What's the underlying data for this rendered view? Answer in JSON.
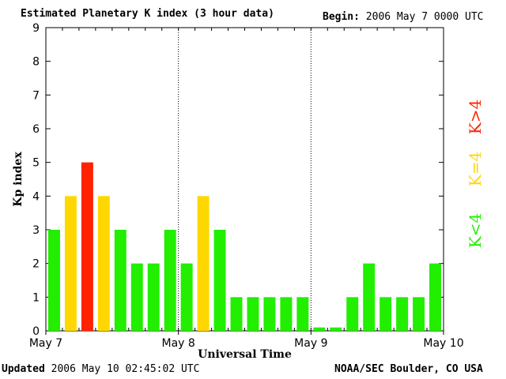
{
  "header": {
    "title": "Estimated Planetary K index (3 hour data)",
    "begin_label": "Begin:",
    "begin_value": "2006 May 7 0000 UTC"
  },
  "footer": {
    "updated_label": "Updated",
    "updated_value": "2006 May 10 02:45:02 UTC",
    "source": "NOAA/SEC Boulder, CO USA"
  },
  "legend": [
    {
      "label": "K>4",
      "color": "#ff2200"
    },
    {
      "label": "K=4",
      "color": "#ffd700"
    },
    {
      "label": "K<4",
      "color": "#22ee00"
    }
  ],
  "chart_data": {
    "type": "bar",
    "xlabel": "Universal Time",
    "ylabel": "Kp index",
    "ylim": [
      0,
      9
    ],
    "yticks": [
      0,
      1,
      2,
      3,
      4,
      5,
      6,
      7,
      8,
      9
    ],
    "day_labels": [
      "May 7",
      "May 8",
      "May 9",
      "May 10"
    ],
    "interval_hours": 3,
    "values": [
      3,
      4,
      5,
      4,
      3,
      2,
      2,
      3,
      2,
      4,
      3,
      1,
      1,
      1,
      1,
      1,
      0.1,
      0.1,
      1,
      2,
      1,
      1,
      1,
      2
    ],
    "colors": {
      "low": "#22ee00",
      "equal": "#ffd700",
      "high": "#ff2200"
    },
    "day_separators": "dotted"
  }
}
